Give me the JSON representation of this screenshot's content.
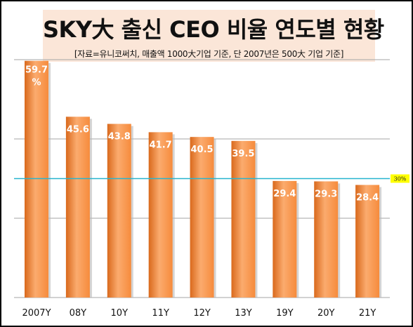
{
  "title": "SKY大 출신 CEO 비율 연도별 현황",
  "subtitle": "[자료=유니코써치, 매출액 1000大기업 기준, 단 2007년은 500大 기업 기준]",
  "colors": {
    "bar": "#f68b3c",
    "bar_light": "#fbab6e",
    "bar_dark": "#d9691c",
    "reference_line": "#27b5cf",
    "reference_label_bg": "#ffff00"
  },
  "chart_data": {
    "type": "bar",
    "categories": [
      "2007Y",
      "08Y",
      "10Y",
      "11Y",
      "12Y",
      "13Y",
      "19Y",
      "20Y",
      "21Y"
    ],
    "values": [
      59.7,
      45.6,
      43.8,
      41.7,
      40.5,
      39.5,
      29.4,
      29.3,
      28.4
    ],
    "data_labels": [
      "59.7%",
      "45.6",
      "43.8",
      "41.7",
      "40.5",
      "39.5",
      "29.4",
      "29.3",
      "28.4"
    ],
    "reference_line": {
      "value": 30,
      "label": "30%"
    },
    "ylim": [
      0,
      60
    ],
    "grid": true,
    "title": "SKY大 출신 CEO 비율 연도별 현황",
    "xlabel": "",
    "ylabel": ""
  }
}
